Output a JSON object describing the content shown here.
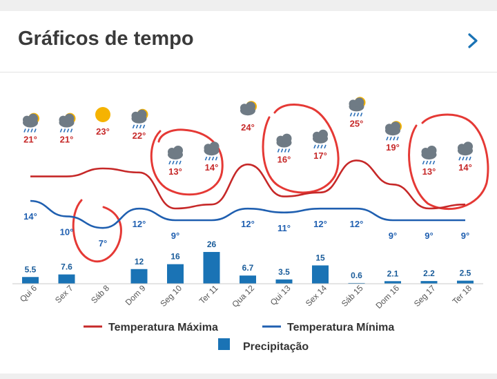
{
  "header": {
    "title": "Gráficos de tempo",
    "chevron_icon": "chevron-right-icon"
  },
  "legend": {
    "max_label": "Temperatura Máxima",
    "min_label": "Temperatura Mínima",
    "precip_label": "Precipitação"
  },
  "colors": {
    "max_line": "#c62828",
    "min_line": "#1f5fb0",
    "precip_bar": "#1a73b5",
    "precip_text": "#1a5c9a",
    "temp_text": "#c62828",
    "annotation": "#e53935",
    "accent": "#1a73b5"
  },
  "chart_data": {
    "type": "line",
    "categories": [
      "Qui 6",
      "Sex 7",
      "Sáb 8",
      "Dom 9",
      "Seg 10",
      "Ter 11",
      "Qua 12",
      "Qui 13",
      "Sex 14",
      "Sáb 15",
      "Dom 16",
      "Seg 17",
      "Ter 18"
    ],
    "series": [
      {
        "name": "Temperatura Máxima",
        "labels": [
          "21°",
          "21°",
          "23°",
          "22°",
          "13°",
          "14°",
          "24°",
          "16°",
          "17°",
          "25°",
          "19°",
          "13°",
          "14°"
        ],
        "values": [
          21,
          21,
          23,
          22,
          13,
          14,
          24,
          16,
          17,
          25,
          19,
          13,
          14
        ]
      },
      {
        "name": "Temperatura Mínima",
        "labels": [
          "14°",
          "10°",
          "7°",
          "12°",
          "9°",
          "",
          "12°",
          "11°",
          "12°",
          "12°",
          "9°",
          "9°",
          "9°"
        ],
        "values": [
          14,
          10,
          7,
          12,
          9,
          9,
          12,
          11,
          12,
          12,
          9,
          9,
          9
        ]
      },
      {
        "name": "Precipitação",
        "type": "bar",
        "labels": [
          "5.5",
          "7.6",
          "",
          "12",
          "16",
          "26",
          "6.7",
          "3.5",
          "15",
          "0.6",
          "2.1",
          "2.2",
          "2.5"
        ],
        "values": [
          5.5,
          7.6,
          0,
          12,
          16,
          26,
          6.7,
          3.5,
          15,
          0.6,
          2.1,
          2.2,
          2.5
        ]
      }
    ],
    "icons": [
      "rain-cloud-sun-icon",
      "rain-cloud-sun-icon",
      "sun-icon",
      "rain-cloud-sun-icon",
      "rain-cloud-icon",
      "rain-cloud-icon",
      "cloud-sun-icon",
      "rain-cloud-icon",
      "rain-cloud-icon",
      "rain-cloud-sun-icon",
      "rain-cloud-sun-icon",
      "rain-cloud-icon",
      "rain-cloud-icon"
    ]
  }
}
